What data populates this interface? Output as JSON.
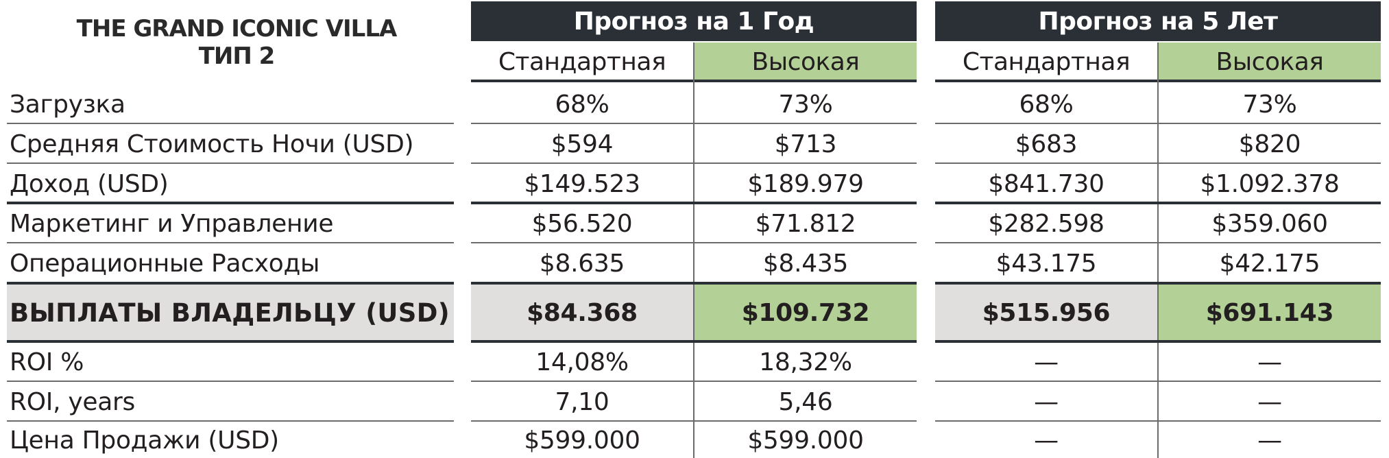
{
  "title": {
    "line1": "THE GRAND ICONIC VILLA",
    "line2": "ТИП 2"
  },
  "periods": [
    {
      "label": "Прогноз на 1 Год",
      "standard": "Стандартная",
      "high": "Высокая"
    },
    {
      "label": "Прогноз на 5 Лет",
      "standard": "Стандартная",
      "high": "Высокая"
    }
  ],
  "rows": [
    {
      "label": "Загрузка",
      "values": [
        "68%",
        "73%",
        "68%",
        "73%"
      ]
    },
    {
      "label": "Средняя Стоимость Ночи (USD)",
      "values": [
        "$594",
        "$713",
        "$683",
        "$820"
      ]
    },
    {
      "label": "Доход (USD)",
      "values": [
        "$149.523",
        "$189.979",
        "$841.730",
        "$1.092.378"
      ]
    },
    {
      "label": "Маркетинг и Управление",
      "values": [
        "$56.520",
        "$71.812",
        "$282.598",
        "$359.060"
      ]
    },
    {
      "label": "Операционные Расходы",
      "values": [
        "$8.635",
        "$8.435",
        "$43.175",
        "$42.175"
      ]
    },
    {
      "label": "ВЫПЛАТЫ ВЛАДЕЛЬЦУ (USD)",
      "values": [
        "$84.368",
        "$109.732",
        "$515.956",
        "$691.143"
      ]
    },
    {
      "label": "ROI %",
      "values": [
        "14,08%",
        "18,32%",
        "—",
        "—"
      ]
    },
    {
      "label": "ROI, years",
      "values": [
        "7,10",
        "5,46",
        "—",
        "—"
      ]
    },
    {
      "label": "Цена Продажи (USD)",
      "values": [
        "$599.000",
        "$599.000",
        "—",
        "—"
      ]
    }
  ],
  "colors": {
    "header_bg": "#2b3037",
    "high_green": "#b3d096",
    "total_grey": "#e0dfdd"
  }
}
